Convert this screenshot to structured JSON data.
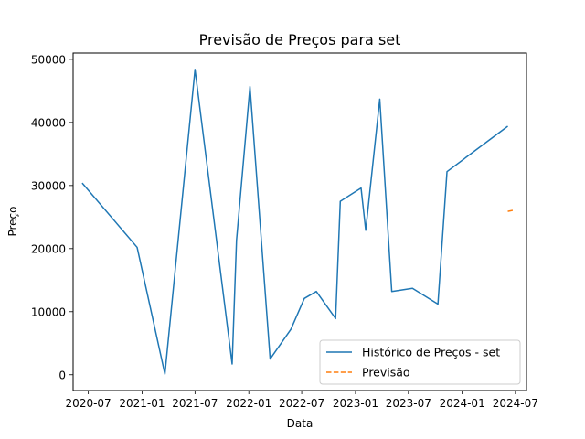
{
  "chart_data": {
    "type": "line",
    "title": "Previsão de Preços para set",
    "xlabel": "Data",
    "ylabel": "Preço",
    "x_is_date": true,
    "xlim": [
      "2020-05-10",
      "2024-08-08"
    ],
    "ylim": [
      -2500,
      51000
    ],
    "x_ticks": [
      "2020-07-01",
      "2021-01-01",
      "2021-07-01",
      "2022-01-01",
      "2022-07-01",
      "2023-01-01",
      "2023-07-01",
      "2024-01-01",
      "2024-07-01"
    ],
    "x_tick_labels": [
      "2020-07",
      "2021-01",
      "2021-07",
      "2022-01",
      "2022-07",
      "2023-01",
      "2023-07",
      "2024-01",
      "2024-07"
    ],
    "y_ticks": [
      0,
      10000,
      20000,
      30000,
      40000,
      50000
    ],
    "y_tick_labels": [
      "0",
      "10000",
      "20000",
      "30000",
      "40000",
      "50000"
    ],
    "grid": false,
    "legend_position": "lower-right",
    "series": [
      {
        "name": "Histórico de Preços - set",
        "color": "#1f77b4",
        "style": "solid",
        "points": [
          {
            "x": "2020-06-10",
            "y": 30400
          },
          {
            "x": "2020-12-15",
            "y": 20200
          },
          {
            "x": "2021-03-20",
            "y": 100
          },
          {
            "x": "2021-07-01",
            "y": 48400
          },
          {
            "x": "2021-11-05",
            "y": 1700
          },
          {
            "x": "2021-11-20",
            "y": 21300
          },
          {
            "x": "2022-01-05",
            "y": 45700
          },
          {
            "x": "2022-03-15",
            "y": 2500
          },
          {
            "x": "2022-05-25",
            "y": 7200
          },
          {
            "x": "2022-07-10",
            "y": 12100
          },
          {
            "x": "2022-08-20",
            "y": 13200
          },
          {
            "x": "2022-10-25",
            "y": 8900
          },
          {
            "x": "2022-11-10",
            "y": 27500
          },
          {
            "x": "2023-01-20",
            "y": 29600
          },
          {
            "x": "2023-02-05",
            "y": 22900
          },
          {
            "x": "2023-03-25",
            "y": 43700
          },
          {
            "x": "2023-05-05",
            "y": 13200
          },
          {
            "x": "2023-07-15",
            "y": 13700
          },
          {
            "x": "2023-10-10",
            "y": 11200
          },
          {
            "x": "2023-11-10",
            "y": 32200
          },
          {
            "x": "2024-06-05",
            "y": 39400
          }
        ]
      },
      {
        "name": "Previsão",
        "color": "#ff7f0e",
        "style": "dashed",
        "points": [
          {
            "x": "2024-06-05",
            "y": 25900
          },
          {
            "x": "2024-06-25",
            "y": 26100
          }
        ]
      }
    ]
  }
}
